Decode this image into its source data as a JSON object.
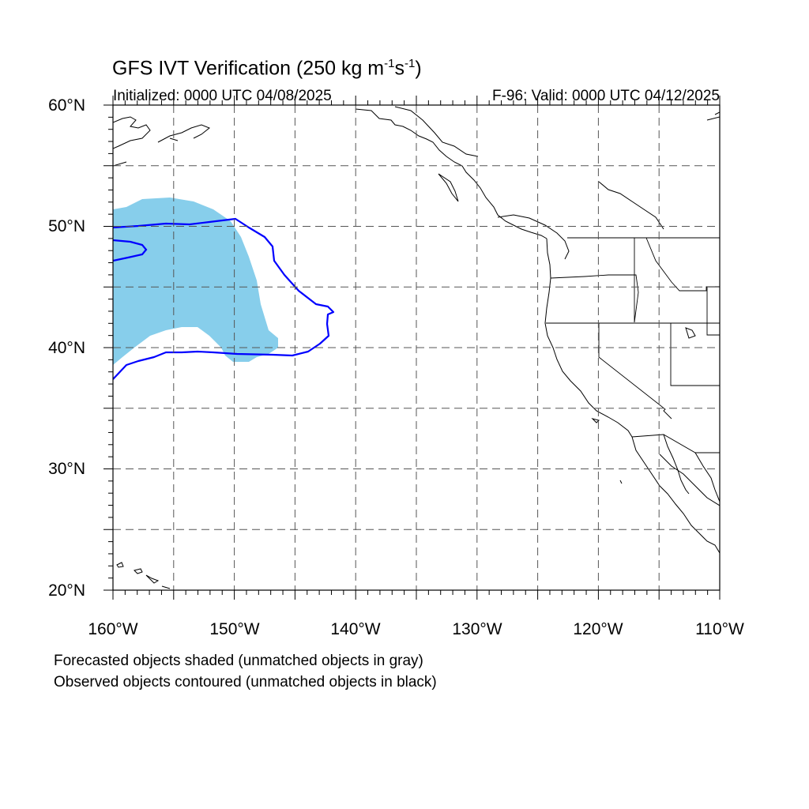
{
  "title": {
    "main": "GFS IVT Verification (250 kg m",
    "exp1": "-1",
    "mid": "s",
    "exp2": "-1",
    "end": ")"
  },
  "subtitle": {
    "left": "Initialized: 0000 UTC 04/08/2025",
    "right": "F-96: Valid: 0000 UTC 04/12/2025"
  },
  "axes": {
    "lat_labels": [
      "60°N",
      "50°N",
      "40°N",
      "30°N",
      "20°N"
    ],
    "lon_labels": [
      "160°W",
      "150°W",
      "140°W",
      "130°W",
      "120°W",
      "110°W"
    ],
    "lat_range": [
      20,
      60
    ],
    "lon_range": [
      -160,
      -110
    ],
    "grid": "dashed, every 5°"
  },
  "colors": {
    "forecast_fill": "#87ceeb",
    "observed_contour": "#0000ff",
    "coastline": "#000000",
    "grid": "#555555"
  },
  "notes": {
    "line1": "Forecasted objects shaded (unmatched objects in gray)",
    "line2": "Observed objects contoured (unmatched objects in black)"
  }
}
